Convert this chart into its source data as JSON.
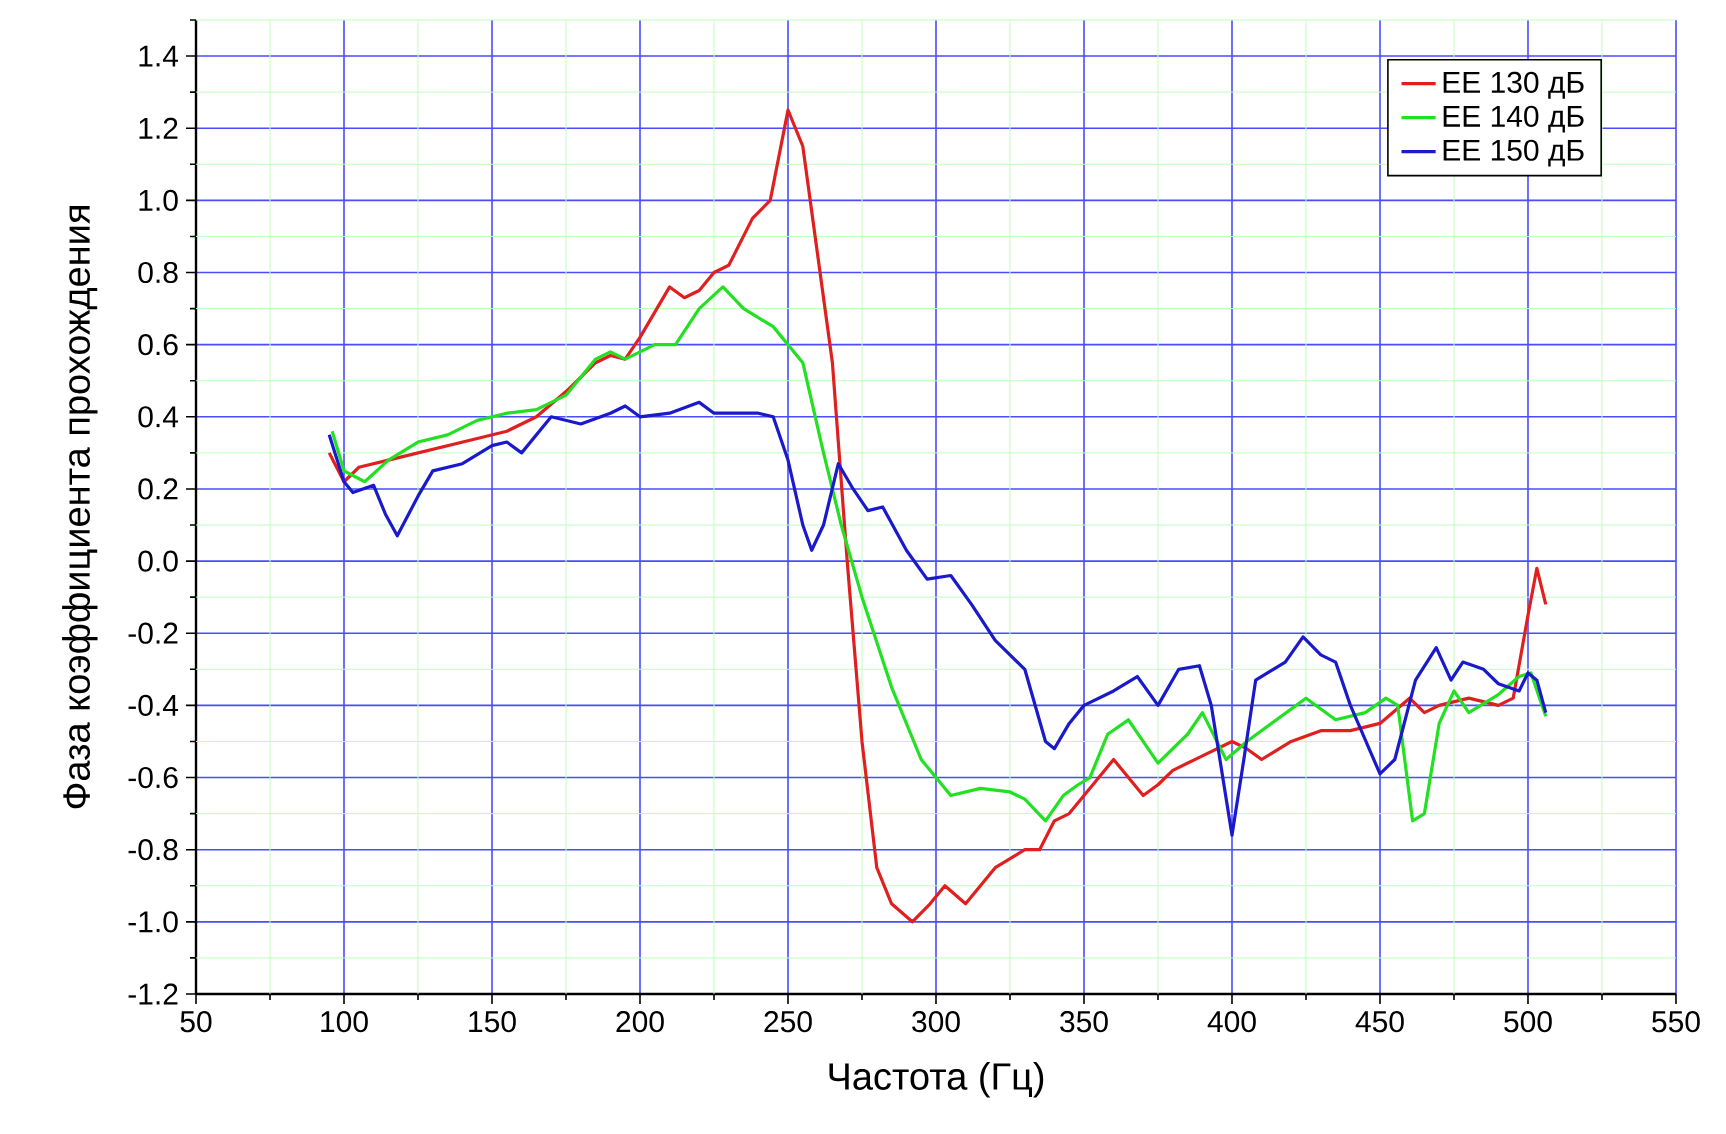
{
  "chart_data": {
    "type": "line",
    "xlabel": "Частота (Гц)",
    "ylabel": "Фаза коэффициента прохождения",
    "xlim": [
      50,
      550
    ],
    "xticks": [
      50,
      {
        "value": 75,
        "label": null
      },
      100,
      {
        "value": 125,
        "label": null
      },
      150,
      {
        "value": 175,
        "label": null
      },
      200,
      {
        "value": 225,
        "label": null
      },
      250,
      {
        "value": 275,
        "label": null
      },
      300,
      {
        "value": 325,
        "label": null
      },
      350,
      {
        "value": 375,
        "label": null
      },
      400,
      {
        "value": 425,
        "label": null
      },
      450,
      {
        "value": 475,
        "label": null
      },
      500,
      {
        "value": 525,
        "label": null
      },
      550
    ],
    "ylim": [
      -1.2,
      1.5
    ],
    "yticks": [
      {
        "value": -1.2,
        "label": "-1.2"
      },
      {
        "value": -1.1,
        "label": null
      },
      {
        "value": -1.0,
        "label": "-1.0"
      },
      {
        "value": -0.9,
        "label": null
      },
      -0.8,
      {
        "value": -0.7,
        "label": null
      },
      -0.6,
      {
        "value": -0.5,
        "label": null
      },
      -0.4,
      {
        "value": -0.3,
        "label": null
      },
      -0.2,
      {
        "value": -0.1,
        "label": null
      },
      {
        "value": 0,
        "label": "0.0"
      },
      {
        "value": 0.1,
        "label": null
      },
      0.2,
      {
        "value": 0.3,
        "label": null
      },
      0.4,
      {
        "value": 0.5,
        "label": null
      },
      0.6,
      {
        "value": 0.7,
        "label": null
      },
      0.8,
      {
        "value": 0.9,
        "label": null
      },
      {
        "value": 1.0,
        "label": "1.0"
      },
      {
        "value": 1.1,
        "label": null
      },
      1.2,
      {
        "value": 1.3,
        "label": null
      },
      1.4,
      {
        "value": 1.5,
        "label": null
      }
    ],
    "grid": true,
    "legend": "top right",
    "marker": "none",
    "line_style": "solid",
    "series": [
      {
        "name": "EE 130 дБ",
        "color": "#e02020",
        "x": [
          95,
          100,
          105,
          115,
          125,
          135,
          145,
          155,
          165,
          175,
          185,
          190,
          195,
          200,
          210,
          215,
          220,
          225,
          230,
          238,
          244,
          250,
          255,
          260,
          265,
          270,
          275,
          280,
          285,
          292,
          298,
          303,
          310,
          320,
          330,
          335,
          340,
          345,
          350,
          355,
          360,
          365,
          370,
          375,
          380,
          390,
          400,
          405,
          410,
          420,
          430,
          440,
          450,
          460,
          465,
          470,
          480,
          490,
          495,
          500,
          503,
          506
        ],
        "values": [
          0.3,
          0.22,
          0.26,
          0.28,
          0.3,
          0.32,
          0.34,
          0.36,
          0.4,
          0.47,
          0.55,
          0.57,
          0.56,
          0.62,
          0.76,
          0.73,
          0.75,
          0.8,
          0.82,
          0.95,
          1.0,
          1.25,
          1.15,
          0.85,
          0.55,
          0.0,
          -0.5,
          -0.85,
          -0.95,
          -1.0,
          -0.95,
          -0.9,
          -0.95,
          -0.85,
          -0.8,
          -0.8,
          -0.72,
          -0.7,
          -0.65,
          -0.6,
          -0.55,
          -0.6,
          -0.65,
          -0.62,
          -0.58,
          -0.54,
          -0.5,
          -0.52,
          -0.55,
          -0.5,
          -0.47,
          -0.47,
          -0.45,
          -0.38,
          -0.42,
          -0.4,
          -0.38,
          -0.4,
          -0.38,
          -0.15,
          -0.02,
          -0.12
        ]
      },
      {
        "name": "EE 140 дБ",
        "color": "#22e022",
        "x": [
          96,
          100,
          107,
          115,
          125,
          135,
          145,
          155,
          165,
          175,
          185,
          190,
          195,
          205,
          212,
          220,
          228,
          235,
          245,
          255,
          262,
          268,
          275,
          285,
          295,
          305,
          315,
          325,
          330,
          337,
          343,
          348,
          352,
          358,
          365,
          375,
          385,
          390,
          398,
          405,
          415,
          425,
          435,
          445,
          452,
          456,
          461,
          465,
          470,
          475,
          480,
          490,
          497,
          501,
          506
        ],
        "values": [
          0.36,
          0.25,
          0.22,
          0.28,
          0.33,
          0.35,
          0.39,
          0.41,
          0.42,
          0.46,
          0.56,
          0.58,
          0.56,
          0.6,
          0.6,
          0.7,
          0.76,
          0.7,
          0.65,
          0.55,
          0.3,
          0.1,
          -0.1,
          -0.35,
          -0.55,
          -0.65,
          -0.63,
          -0.64,
          -0.66,
          -0.72,
          -0.65,
          -0.62,
          -0.6,
          -0.48,
          -0.44,
          -0.56,
          -0.48,
          -0.42,
          -0.55,
          -0.5,
          -0.44,
          -0.38,
          -0.44,
          -0.42,
          -0.38,
          -0.4,
          -0.72,
          -0.7,
          -0.45,
          -0.36,
          -0.42,
          -0.37,
          -0.32,
          -0.31,
          -0.43
        ]
      },
      {
        "name": "EE 150 дБ",
        "color": "#1a1acc",
        "x": [
          95,
          100,
          103,
          110,
          114,
          118,
          125,
          130,
          140,
          150,
          155,
          160,
          170,
          180,
          190,
          195,
          200,
          210,
          220,
          225,
          240,
          245,
          250,
          255,
          258,
          262,
          267,
          272,
          277,
          282,
          290,
          297,
          305,
          312,
          320,
          330,
          337,
          340,
          345,
          350,
          360,
          368,
          375,
          382,
          389,
          393,
          400,
          404,
          408,
          418,
          424,
          430,
          435,
          440,
          450,
          455,
          462,
          469,
          474,
          478,
          485,
          490,
          497,
          500,
          503,
          506
        ],
        "values": [
          0.35,
          0.22,
          0.19,
          0.21,
          0.13,
          0.07,
          0.18,
          0.25,
          0.27,
          0.32,
          0.33,
          0.3,
          0.4,
          0.38,
          0.41,
          0.43,
          0.4,
          0.41,
          0.44,
          0.41,
          0.41,
          0.4,
          0.28,
          0.1,
          0.03,
          0.1,
          0.27,
          0.2,
          0.14,
          0.15,
          0.03,
          -0.05,
          -0.04,
          -0.12,
          -0.22,
          -0.3,
          -0.5,
          -0.52,
          -0.45,
          -0.4,
          -0.36,
          -0.32,
          -0.4,
          -0.3,
          -0.29,
          -0.4,
          -0.76,
          -0.55,
          -0.33,
          -0.28,
          -0.21,
          -0.26,
          -0.28,
          -0.4,
          -0.59,
          -0.55,
          -0.33,
          -0.24,
          -0.33,
          -0.28,
          -0.3,
          -0.34,
          -0.36,
          -0.31,
          -0.33,
          -0.42
        ]
      }
    ]
  }
}
